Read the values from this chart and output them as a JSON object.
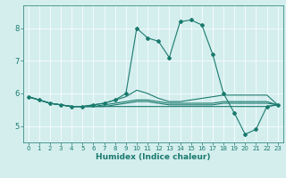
{
  "xlabel": "Humidex (Indice chaleur)",
  "ylabel": "",
  "bg_color": "#d4eeee",
  "line_color": "#1a7a6e",
  "grid_color": "#ffffff",
  "xlim": [
    -0.5,
    23.5
  ],
  "ylim": [
    4.5,
    8.7
  ],
  "yticks": [
    5,
    6,
    7,
    8
  ],
  "xticks": [
    0,
    1,
    2,
    3,
    4,
    5,
    6,
    7,
    8,
    9,
    10,
    11,
    12,
    13,
    14,
    15,
    16,
    17,
    18,
    19,
    20,
    21,
    22,
    23
  ],
  "lines": [
    {
      "x": [
        0,
        1,
        2,
        3,
        4,
        5,
        6,
        7,
        8,
        9,
        10,
        11,
        12,
        13,
        14,
        15,
        16,
        17,
        18,
        19,
        20,
        21,
        22,
        23
      ],
      "y": [
        5.9,
        5.8,
        5.7,
        5.65,
        5.6,
        5.6,
        5.65,
        5.7,
        5.8,
        6.0,
        8.0,
        7.7,
        7.6,
        7.1,
        8.2,
        8.25,
        8.1,
        7.2,
        6.0,
        5.4,
        4.75,
        4.9,
        5.6,
        5.65
      ],
      "marker": "D",
      "markersize": 2.0
    },
    {
      "x": [
        0,
        1,
        2,
        3,
        4,
        5,
        6,
        7,
        8,
        9,
        10,
        11,
        12,
        13,
        14,
        15,
        16,
        17,
        18,
        19,
        20,
        21,
        22,
        23
      ],
      "y": [
        5.9,
        5.8,
        5.7,
        5.65,
        5.6,
        5.6,
        5.65,
        5.7,
        5.8,
        5.9,
        6.1,
        6.0,
        5.85,
        5.75,
        5.75,
        5.8,
        5.85,
        5.9,
        5.95,
        5.95,
        5.95,
        5.95,
        5.95,
        5.65
      ],
      "marker": null,
      "markersize": 0
    },
    {
      "x": [
        0,
        1,
        2,
        3,
        4,
        5,
        6,
        7,
        8,
        9,
        10,
        11,
        12,
        13,
        14,
        15,
        16,
        17,
        18,
        19,
        20,
        21,
        22,
        23
      ],
      "y": [
        5.9,
        5.8,
        5.7,
        5.65,
        5.6,
        5.6,
        5.6,
        5.6,
        5.6,
        5.6,
        5.6,
        5.6,
        5.6,
        5.6,
        5.6,
        5.6,
        5.6,
        5.6,
        5.6,
        5.6,
        5.6,
        5.6,
        5.6,
        5.65
      ],
      "marker": null,
      "markersize": 0
    },
    {
      "x": [
        0,
        1,
        2,
        3,
        4,
        5,
        6,
        7,
        8,
        9,
        10,
        11,
        12,
        13,
        14,
        15,
        16,
        17,
        18,
        19,
        20,
        21,
        22,
        23
      ],
      "y": [
        5.9,
        5.8,
        5.7,
        5.65,
        5.6,
        5.6,
        5.6,
        5.65,
        5.7,
        5.75,
        5.8,
        5.8,
        5.75,
        5.7,
        5.7,
        5.7,
        5.7,
        5.7,
        5.75,
        5.75,
        5.75,
        5.75,
        5.75,
        5.65
      ],
      "marker": null,
      "markersize": 0
    },
    {
      "x": [
        0,
        1,
        2,
        3,
        4,
        5,
        6,
        7,
        8,
        9,
        10,
        11,
        12,
        13,
        14,
        15,
        16,
        17,
        18,
        19,
        20,
        21,
        22,
        23
      ],
      "y": [
        5.9,
        5.8,
        5.7,
        5.65,
        5.6,
        5.6,
        5.6,
        5.6,
        5.65,
        5.7,
        5.75,
        5.75,
        5.7,
        5.65,
        5.65,
        5.65,
        5.65,
        5.65,
        5.7,
        5.7,
        5.7,
        5.7,
        5.7,
        5.65
      ],
      "marker": null,
      "markersize": 0
    }
  ]
}
